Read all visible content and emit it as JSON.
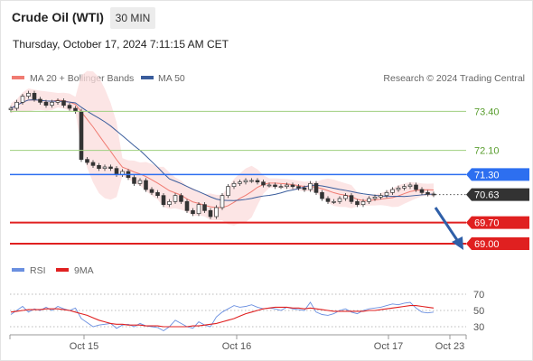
{
  "header": {
    "title": "Crude Oil (WTI)",
    "timeframe": "30 MIN",
    "datetime": "Thursday, October 17, 2024 7:11:15 AM CET"
  },
  "colors": {
    "ma20": "#f07b72",
    "bollinger_fill": "#fbdcdc",
    "ma50": "#3a5d9c",
    "resistance": "#9fcf7f",
    "resistance_text": "#5a9e2f",
    "pivot": "#2d6ff0",
    "support": "#e02020",
    "price": "#333333",
    "candle_up": "#ffffff",
    "candle_down": "#333333",
    "rsi": "#6a8fe0",
    "rsi_ma": "#e02020",
    "arrow": "#2f5fa8"
  },
  "chart_data": [
    {
      "type": "line",
      "name": "price-panel",
      "legend": [
        {
          "label": "MA 20 + Bollinger Bands",
          "color": "#f07b72"
        },
        {
          "label": "MA 50",
          "color": "#3a5d9c"
        }
      ],
      "credit": "Research © 2024 Trading Central",
      "ylim": [
        68.7,
        74.1
      ],
      "x_ticks": [
        "Oct 15",
        "Oct 16",
        "Oct 17",
        "Oct 23"
      ],
      "levels": [
        {
          "value": 73.4,
          "label": "73.40",
          "kind": "resistance"
        },
        {
          "value": 72.1,
          "label": "72.10",
          "kind": "resistance"
        },
        {
          "value": 71.3,
          "label": "71.30",
          "kind": "pivot"
        },
        {
          "value": 70.63,
          "label": "70.63",
          "kind": "price"
        },
        {
          "value": 69.7,
          "label": "69.70",
          "kind": "support"
        },
        {
          "value": 69.0,
          "label": "69.00",
          "kind": "support"
        }
      ],
      "series": [
        {
          "values": [
            73.5,
            73.7,
            73.9,
            74.0,
            73.8,
            73.7,
            73.6,
            73.7,
            73.75,
            73.6,
            73.5,
            73.4,
            71.8,
            71.7,
            71.6,
            71.5,
            71.55,
            71.5,
            71.3,
            71.4,
            71.2,
            71.0,
            71.1,
            70.8,
            70.7,
            70.6,
            70.3,
            70.4,
            70.6,
            70.4,
            70.1,
            70.0,
            70.3,
            70.1,
            69.9,
            70.2,
            70.6,
            70.9,
            71.0,
            71.05,
            71.1,
            71.1,
            71.05,
            70.95,
            70.95,
            70.9,
            70.9,
            70.95,
            70.9,
            70.85,
            70.8,
            71.0,
            70.7,
            70.5,
            70.4,
            70.4,
            70.5,
            70.6,
            70.4,
            70.3,
            70.4,
            70.5,
            70.55,
            70.6,
            70.7,
            70.8,
            70.85,
            70.9,
            70.95,
            70.8,
            70.7,
            70.65,
            70.63
          ]
        }
      ]
    },
    {
      "type": "line",
      "name": "rsi-panel",
      "legend": [
        {
          "label": "RSI",
          "color": "#6a8fe0"
        },
        {
          "label": "9MA",
          "color": "#e02020"
        }
      ],
      "ylim": [
        20,
        80
      ],
      "y_ticks": [
        70,
        50,
        30
      ],
      "series": [
        {
          "name": "RSI",
          "values": [
            45,
            50,
            55,
            48,
            52,
            50,
            54,
            50,
            55,
            52,
            50,
            53,
            40,
            35,
            30,
            32,
            33,
            34,
            28,
            32,
            33,
            30,
            34,
            31,
            30,
            29,
            25,
            30,
            38,
            34,
            30,
            28,
            36,
            32,
            30,
            42,
            48,
            52,
            56,
            54,
            55,
            57,
            54,
            52,
            53,
            52,
            50,
            54,
            52,
            51,
            50,
            60,
            48,
            45,
            44,
            46,
            50,
            52,
            48,
            46,
            50,
            52,
            53,
            54,
            56,
            58,
            57,
            59,
            60,
            53,
            48,
            47,
            48
          ]
        },
        {
          "name": "9MA",
          "values": [
            48,
            49,
            50,
            51,
            51,
            51,
            52,
            52,
            52,
            51,
            50,
            48,
            46,
            44,
            41,
            38,
            36,
            34,
            33,
            33,
            32,
            32,
            32,
            31,
            31,
            31,
            30,
            30,
            30,
            30,
            30,
            31,
            31,
            32,
            33,
            34,
            36,
            38,
            40,
            43,
            46,
            48,
            50,
            52,
            53,
            54,
            54,
            54,
            53,
            53,
            52,
            53,
            52,
            51,
            50,
            49,
            49,
            49,
            49,
            49,
            49,
            50,
            50,
            51,
            52,
            53,
            54,
            55,
            56,
            56,
            55,
            54,
            53
          ]
        }
      ]
    }
  ]
}
